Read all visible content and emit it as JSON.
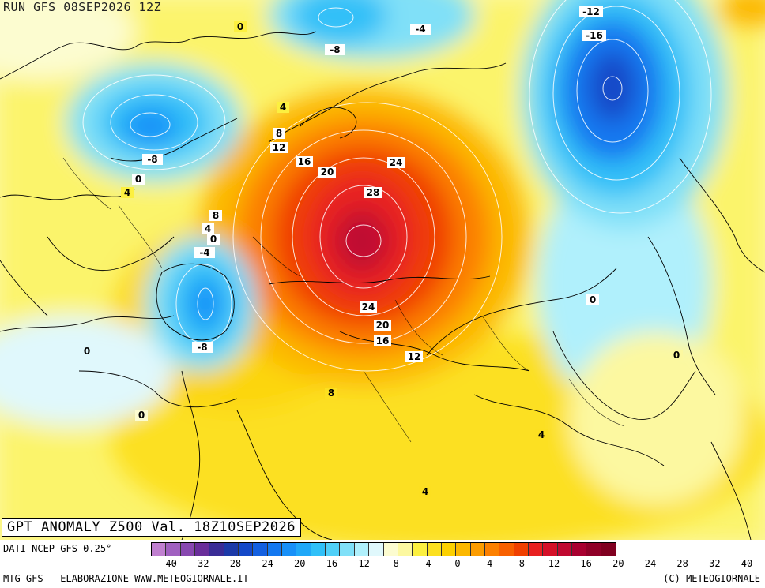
{
  "header": {
    "run_title": "RUN GFS 08SEP2026 12Z"
  },
  "map_title": "GPT ANOMALY Z500 Val. 18Z10SEP2026",
  "footer": {
    "source": "DATI NCEP GFS 0.25°",
    "credit_left": "MTG-GFS – ELABORAZIONE WWW.METEOGIORNALE.IT",
    "credit_right": "(C) METEOGIORNALE"
  },
  "color_scale": {
    "colors": [
      "#c080d0",
      "#a060c0",
      "#8848b0",
      "#6a2e9a",
      "#3a2c96",
      "#1c3aa8",
      "#1448c8",
      "#1460e0",
      "#1478f0",
      "#1890f8",
      "#20a8f8",
      "#30c0f8",
      "#50d0f8",
      "#80e0f8",
      "#b0f0fc",
      "#e0f8fc",
      "#fcfcd0",
      "#fcf8a0",
      "#fcf040",
      "#fce020",
      "#fcd000",
      "#fcb800",
      "#fc9c00",
      "#fc8000",
      "#f86000",
      "#f04000",
      "#e82020",
      "#d41028",
      "#c00830",
      "#a80030",
      "#900028",
      "#800020"
    ],
    "tick_labels": [
      "-40",
      "-32",
      "-28",
      "-24",
      "-20",
      "-16",
      "-12",
      "-8",
      "-4",
      "0",
      "4",
      "8",
      "12",
      "16",
      "20",
      "24",
      "28",
      "32",
      "40"
    ]
  },
  "contour_labels": [
    "0",
    "-4",
    "-8",
    "-12",
    "-16",
    "-8",
    "4",
    "8",
    "12",
    "16",
    "20",
    "24",
    "28",
    "24",
    "20",
    "16",
    "12",
    "8",
    "4",
    "0",
    "-4",
    "-8",
    "0",
    "0",
    "0",
    "8",
    "4",
    "4",
    "0",
    "4",
    "0"
  ]
}
